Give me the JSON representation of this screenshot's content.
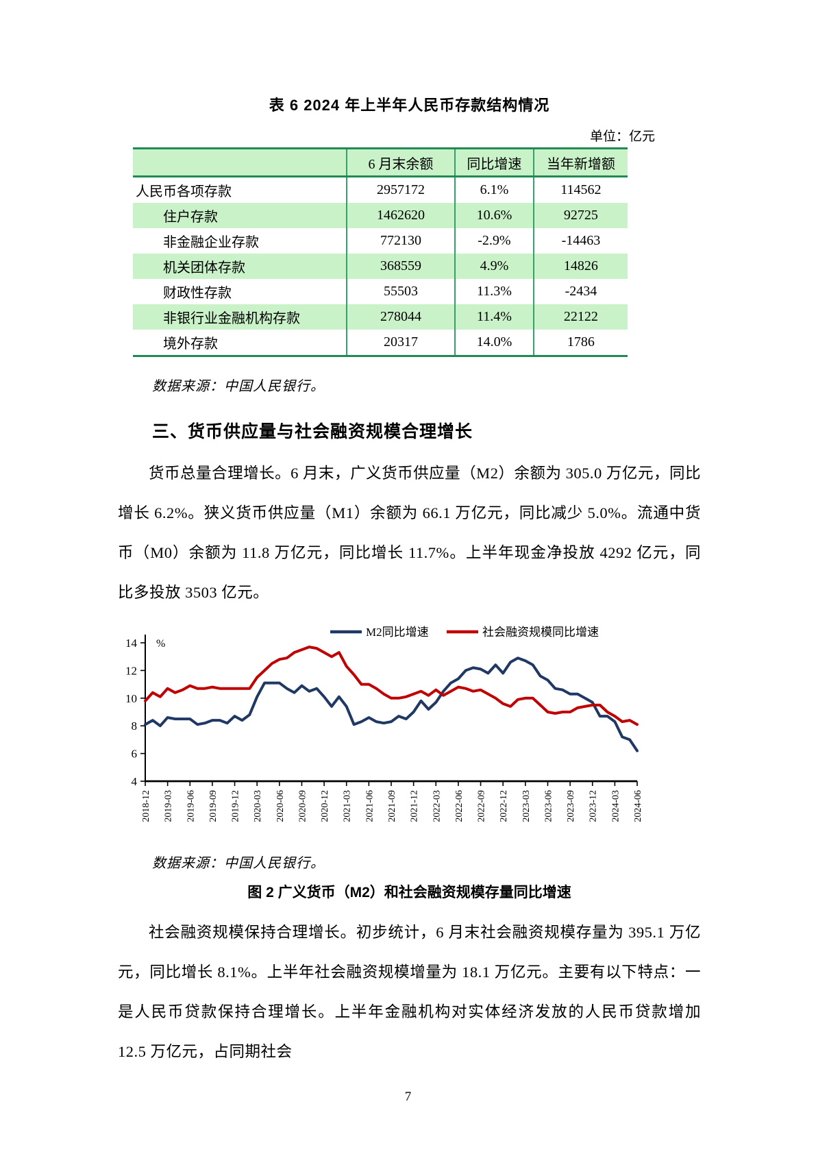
{
  "page": {
    "number": "7"
  },
  "colors": {
    "table_border": "#1F8A54",
    "table_stripe": "#C9F2C9",
    "m2_line": "#1F3864",
    "tsf_line": "#C00000"
  },
  "table": {
    "title": "表 6  2024 年上半年人民币存款结构情况",
    "unit_note": "单位：亿元",
    "columns": [
      "",
      "6 月末余额",
      "同比增速",
      "当年新增额"
    ],
    "rows": [
      {
        "label": "人民币各项存款",
        "values": [
          "2957172",
          "6.1%",
          "114562"
        ]
      },
      {
        "label": "住户存款",
        "values": [
          "1462620",
          "10.6%",
          "92725"
        ]
      },
      {
        "label": "非金融企业存款",
        "values": [
          "772130",
          "-2.9%",
          "-14463"
        ]
      },
      {
        "label": "机关团体存款",
        "values": [
          "368559",
          "4.9%",
          "14826"
        ]
      },
      {
        "label": "财政性存款",
        "values": [
          "55503",
          "11.3%",
          "-2434"
        ]
      },
      {
        "label": "非银行业金融机构存款",
        "values": [
          "278044",
          "11.4%",
          "22122"
        ]
      },
      {
        "label": "境外存款",
        "values": [
          "20317",
          "14.0%",
          "1786"
        ]
      }
    ],
    "source": "数据来源：中国人民银行。"
  },
  "section": {
    "heading": "三、货币供应量与社会融资规模合理增长",
    "paragraph1": "货币总量合理增长。6 月末，广义货币供应量（M2）余额为 305.0 万亿元，同比增长 6.2%。狭义货币供应量（M1）余额为 66.1 万亿元，同比减少 5.0%。流通中货币（M0）余额为 11.8 万亿元，同比增长 11.7%。上半年现金净投放 4292 亿元，同比多投放 3503 亿元。",
    "paragraph2": "社会融资规模保持合理增长。初步统计，6 月末社会融资规模存量为 395.1 万亿元，同比增长 8.1%。上半年社会融资规模增量为 18.1 万亿元。主要有以下特点：一是人民币贷款保持合理增长。上半年金融机构对实体经济发放的人民币贷款增加 12.5 万亿元，占同期社会"
  },
  "figure": {
    "source": "数据来源：中国人民银行。",
    "caption": "图 2  广义货币（M2）和社会融资规模存量同比增速"
  },
  "chart_data": {
    "type": "line",
    "title": "",
    "xlabel": "",
    "ylabel": "%",
    "ylim": [
      4,
      14
    ],
    "yticks": [
      4,
      6,
      8,
      10,
      12,
      14
    ],
    "grid": false,
    "legend_position": "top",
    "x_tick_labels": [
      "2018-12",
      "2019-03",
      "2019-06",
      "2019-09",
      "2019-12",
      "2020-03",
      "2020-06",
      "2020-09",
      "2020-12",
      "2021-03",
      "2021-06",
      "2021-09",
      "2021-12",
      "2022-03",
      "2022-06",
      "2022-09",
      "2022-12",
      "2023-03",
      "2023-06",
      "2023-09",
      "2023-12",
      "2024-03",
      "2024-06"
    ],
    "x_is_monthly_from": "2018-12",
    "series": [
      {
        "name": "M2同比增速",
        "color": "#1F3864",
        "values": [
          8.1,
          8.4,
          8.0,
          8.6,
          8.5,
          8.5,
          8.5,
          8.1,
          8.2,
          8.4,
          8.4,
          8.2,
          8.7,
          8.4,
          8.8,
          10.1,
          11.1,
          11.1,
          11.1,
          10.7,
          10.4,
          10.9,
          10.5,
          10.7,
          10.1,
          9.4,
          10.1,
          9.4,
          8.1,
          8.3,
          8.6,
          8.3,
          8.2,
          8.3,
          8.7,
          8.5,
          9.0,
          9.8,
          9.2,
          9.7,
          10.5,
          11.1,
          11.4,
          12.0,
          12.2,
          12.1,
          11.8,
          12.4,
          11.8,
          12.6,
          12.9,
          12.7,
          12.4,
          11.6,
          11.3,
          10.7,
          10.6,
          10.3,
          10.3,
          10.0,
          9.7,
          8.7,
          8.7,
          8.3,
          7.2,
          7.0,
          6.2
        ]
      },
      {
        "name": "社会融资规模同比增速",
        "color": "#C00000",
        "values": [
          9.8,
          10.4,
          10.1,
          10.7,
          10.4,
          10.6,
          10.9,
          10.7,
          10.7,
          10.8,
          10.7,
          10.7,
          10.7,
          10.7,
          10.7,
          11.5,
          12.0,
          12.5,
          12.8,
          12.9,
          13.3,
          13.5,
          13.7,
          13.6,
          13.3,
          13.0,
          13.3,
          12.3,
          11.7,
          11.0,
          11.0,
          10.7,
          10.3,
          10.0,
          10.0,
          10.1,
          10.3,
          10.5,
          10.2,
          10.6,
          10.2,
          10.5,
          10.8,
          10.7,
          10.5,
          10.6,
          10.3,
          10.0,
          9.6,
          9.4,
          9.9,
          10.0,
          10.0,
          9.5,
          9.0,
          8.9,
          9.0,
          9.0,
          9.3,
          9.4,
          9.5,
          9.5,
          9.0,
          8.7,
          8.3,
          8.4,
          8.1
        ]
      }
    ]
  }
}
